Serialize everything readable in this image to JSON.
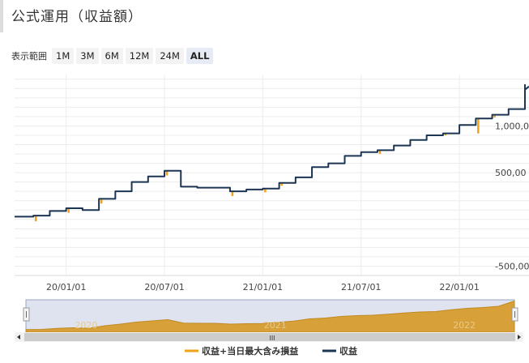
{
  "header": {
    "title": "公式運用（収益額）"
  },
  "range_selector": {
    "label": "表示範囲",
    "buttons": [
      {
        "label": "1M",
        "active": false
      },
      {
        "label": "3M",
        "active": false
      },
      {
        "label": "6M",
        "active": false
      },
      {
        "label": "12M",
        "active": false
      },
      {
        "label": "24M",
        "active": false
      },
      {
        "label": "ALL",
        "active": true
      }
    ]
  },
  "chart_data": {
    "type": "line",
    "x_ticks": [
      "20/01/01",
      "20/07/01",
      "21/01/01",
      "21/07/01",
      "22/01/01"
    ],
    "y_ticks": [
      "1,000,00",
      "500,00",
      "-500,00"
    ],
    "navigator_labels": [
      "2020",
      "2021",
      "2022"
    ],
    "ylim": [
      -600000,
      1550000
    ],
    "grid": true,
    "legend_position": "bottom",
    "series": [
      {
        "name": "収益+当日最大含み損益",
        "color": "#f0a21a"
      },
      {
        "name": "収益",
        "color": "#1c3553",
        "x": [
          "19-10",
          "19-11",
          "19-12",
          "20-01",
          "20-02",
          "20-03",
          "20-04",
          "20-05",
          "20-06",
          "20-07",
          "20-08",
          "20-09",
          "20-10",
          "20-11",
          "20-12",
          "21-01",
          "21-02",
          "21-03",
          "21-04",
          "21-05",
          "21-06",
          "21-07",
          "21-08",
          "21-09",
          "21-10",
          "21-11",
          "21-12",
          "22-01",
          "22-02",
          "22-03",
          "22-04",
          "22-05"
        ],
        "values": [
          30000,
          40000,
          90000,
          120000,
          100000,
          220000,
          300000,
          400000,
          460000,
          520000,
          350000,
          340000,
          340000,
          300000,
          320000,
          330000,
          390000,
          450000,
          560000,
          600000,
          680000,
          720000,
          740000,
          790000,
          850000,
          900000,
          920000,
          1010000,
          1080000,
          1120000,
          1180000,
          1440000
        ]
      }
    ],
    "dips": [
      {
        "x": "19-11",
        "y": -20000
      },
      {
        "x": "20-01",
        "y": 70000
      },
      {
        "x": "20-03",
        "y": 170000
      },
      {
        "x": "20-07",
        "y": 470000
      },
      {
        "x": "20-11",
        "y": 250000
      },
      {
        "x": "21-01",
        "y": 290000
      },
      {
        "x": "21-02",
        "y": 360000
      },
      {
        "x": "21-08",
        "y": 700000
      },
      {
        "x": "21-12",
        "y": 900000
      },
      {
        "x": "22-02",
        "y": 920000
      },
      {
        "x": "22-03",
        "y": 1090000
      }
    ]
  }
}
